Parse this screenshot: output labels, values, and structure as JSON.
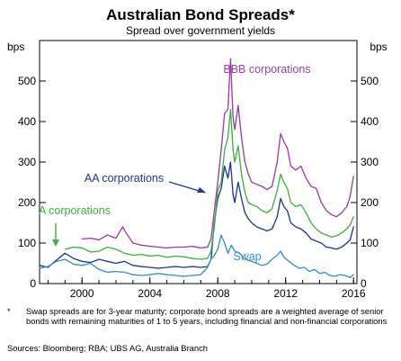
{
  "chart_data": {
    "type": "line",
    "title": "Australian Bond Spreads*",
    "subtitle": "Spread over government yields",
    "ylabel_left": "bps",
    "ylabel_right": "bps",
    "xlim": [
      1997.5,
      2016.2
    ],
    "ylim": [
      0,
      600
    ],
    "x_ticks": [
      2000,
      2004,
      2008,
      2012,
      2016
    ],
    "y_ticks": [
      0,
      100,
      200,
      300,
      400,
      500
    ],
    "grid": false,
    "legend": "inline labels",
    "series": [
      {
        "name": "BBB corporations",
        "color": "#9b3fa8",
        "x": [
          2000.0,
          2000.5,
          2001.0,
          2001.5,
          2002.0,
          2002.4,
          2002.6,
          2003.0,
          2003.5,
          2004.0,
          2004.5,
          2005.0,
          2005.5,
          2006.0,
          2006.5,
          2007.0,
          2007.4,
          2007.6,
          2007.8,
          2008.0,
          2008.2,
          2008.4,
          2008.6,
          2008.75,
          2008.9,
          2009.0,
          2009.2,
          2009.4,
          2009.6,
          2009.8,
          2010.0,
          2010.3,
          2010.6,
          2010.9,
          2011.2,
          2011.5,
          2011.7,
          2011.9,
          2012.1,
          2012.3,
          2012.6,
          2012.9,
          2013.2,
          2013.5,
          2013.8,
          2014.1,
          2014.4,
          2014.7,
          2015.0,
          2015.3,
          2015.6,
          2015.8,
          2016.0
        ],
        "values": [
          110,
          112,
          108,
          120,
          112,
          140,
          125,
          100,
          95,
          92,
          90,
          88,
          90,
          90,
          92,
          88,
          90,
          110,
          180,
          250,
          330,
          420,
          430,
          555,
          410,
          380,
          440,
          360,
          300,
          270,
          250,
          245,
          240,
          232,
          240,
          300,
          370,
          350,
          335,
          290,
          280,
          290,
          260,
          240,
          235,
          200,
          180,
          170,
          165,
          175,
          190,
          215,
          265
        ]
      },
      {
        "name": "AA corporations",
        "color": "#1c3a94",
        "x": [
          1997.5,
          1998.0,
          1998.5,
          1999.0,
          1999.5,
          2000.0,
          2000.5,
          2001.0,
          2001.5,
          2002.0,
          2002.5,
          2003.0,
          2003.5,
          2004.0,
          2004.5,
          2005.0,
          2005.5,
          2006.0,
          2006.5,
          2007.0,
          2007.4,
          2007.6,
          2007.8,
          2008.0,
          2008.2,
          2008.4,
          2008.6,
          2008.75,
          2008.9,
          2009.0,
          2009.2,
          2009.4,
          2009.6,
          2009.8,
          2010.0,
          2010.3,
          2010.6,
          2010.9,
          2011.2,
          2011.5,
          2011.7,
          2011.9,
          2012.1,
          2012.3,
          2012.6,
          2012.9,
          2013.2,
          2013.5,
          2013.8,
          2014.1,
          2014.4,
          2014.7,
          2015.0,
          2015.3,
          2015.6,
          2015.8,
          2016.0
        ],
        "values": [
          45,
          40,
          58,
          75,
          62,
          55,
          52,
          60,
          55,
          50,
          55,
          45,
          42,
          40,
          38,
          40,
          42,
          40,
          42,
          40,
          42,
          60,
          150,
          210,
          235,
          290,
          260,
          300,
          220,
          200,
          250,
          210,
          175,
          160,
          150,
          140,
          135,
          130,
          135,
          165,
          210,
          190,
          180,
          150,
          140,
          135,
          125,
          110,
          105,
          100,
          90,
          88,
          85,
          90,
          100,
          108,
          140
        ]
      },
      {
        "name": "A corporations",
        "color": "#3cb43c",
        "x": [
          1999.0,
          1999.5,
          2000.0,
          2000.5,
          2001.0,
          2001.5,
          2002.0,
          2002.5,
          2003.0,
          2003.5,
          2004.0,
          2004.5,
          2005.0,
          2005.5,
          2006.0,
          2006.5,
          2007.0,
          2007.4,
          2007.6,
          2007.8,
          2008.0,
          2008.2,
          2008.4,
          2008.6,
          2008.75,
          2008.9,
          2009.0,
          2009.2,
          2009.4,
          2009.6,
          2009.8,
          2010.0,
          2010.3,
          2010.6,
          2010.9,
          2011.2,
          2011.5,
          2011.7,
          2011.9,
          2012.1,
          2012.3,
          2012.6,
          2012.9,
          2013.2,
          2013.5,
          2013.8,
          2014.1,
          2014.4,
          2014.7,
          2015.0,
          2015.3,
          2015.6,
          2015.8,
          2016.0
        ],
        "values": [
          85,
          90,
          88,
          78,
          80,
          90,
          85,
          75,
          70,
          72,
          68,
          70,
          65,
          68,
          66,
          62,
          60,
          62,
          80,
          140,
          230,
          250,
          330,
          360,
          430,
          330,
          300,
          340,
          270,
          225,
          200,
          195,
          190,
          180,
          175,
          185,
          230,
          270,
          250,
          235,
          200,
          190,
          195,
          175,
          150,
          135,
          125,
          120,
          115,
          118,
          125,
          135,
          145,
          165
        ]
      },
      {
        "name": "Swap",
        "color": "#3a8fd0",
        "x": [
          1997.5,
          1998.0,
          1998.5,
          1999.0,
          1999.5,
          2000.0,
          2000.5,
          2001.0,
          2001.5,
          2002.0,
          2002.5,
          2003.0,
          2003.5,
          2004.0,
          2004.5,
          2005.0,
          2005.5,
          2006.0,
          2006.5,
          2007.0,
          2007.4,
          2007.6,
          2007.8,
          2008.0,
          2008.2,
          2008.4,
          2008.6,
          2008.8,
          2009.0,
          2009.3,
          2009.6,
          2010.0,
          2010.3,
          2010.6,
          2010.9,
          2011.2,
          2011.5,
          2011.7,
          2011.9,
          2012.2,
          2012.5,
          2012.8,
          2013.1,
          2013.4,
          2013.7,
          2014.0,
          2014.3,
          2014.6,
          2014.9,
          2015.2,
          2015.5,
          2015.8,
          2016.0
        ],
        "values": [
          38,
          42,
          55,
          60,
          48,
          45,
          50,
          35,
          28,
          30,
          28,
          22,
          20,
          22,
          25,
          22,
          20,
          18,
          20,
          22,
          40,
          60,
          70,
          85,
          120,
          100,
          75,
          95,
          80,
          75,
          60,
          55,
          50,
          45,
          48,
          60,
          70,
          80,
          65,
          55,
          45,
          38,
          40,
          30,
          35,
          25,
          28,
          20,
          18,
          22,
          20,
          15,
          22
        ]
      }
    ]
  },
  "footnote": {
    "marker": "*",
    "text": "Swap spreads are for 3-year maturity; corporate bond spreads are a weighted average of senior bonds with remaining maturities of 1 to 5 years, including financial and non-financial corporations"
  },
  "sources": "Sources:  Bloomberg; RBA; UBS AG, Australia Branch"
}
